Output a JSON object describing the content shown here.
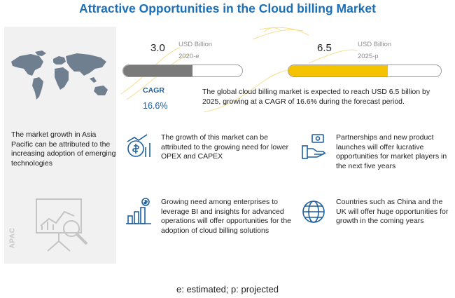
{
  "title": "Attractive Opportunities in the Cloud billing Market",
  "left_panel": {
    "growth_text": "The market growth in Asia Pacific can be attributed to the increasing adoption of emerging technologies",
    "region_label": "APAC",
    "icons": [
      "world-map-icon",
      "analytics-board-icon"
    ]
  },
  "market_size": {
    "start": {
      "value": "3.0",
      "unit": "USD Billion",
      "year": "2020-e"
    },
    "end": {
      "value": "6.5",
      "unit": "USD Billion",
      "year": "2025-p"
    },
    "cagr_label": "CAGR",
    "cagr_value": "16.6%",
    "summary": "The global cloud billing market is expected to reach USD 6.5 billion by 2025, growing at a CAGR of 16.6% during the forecast period."
  },
  "cards": [
    {
      "icon": "money-chart-icon",
      "text": "The growth of this market can be attributed to the growing need for lower OPEX and CAPEX"
    },
    {
      "icon": "handshake-money-icon",
      "text": "Partnerships and new product launches will offer lucrative opportunities for market players in the next five years"
    },
    {
      "icon": "bar-chart-dollar-icon",
      "text": "Growing need among enterprises to leverage BI and insights for advanced operations will offer opportunities for the adoption of cloud billing solutions"
    },
    {
      "icon": "globe-icon",
      "text": "Countries such as China and the UK will offer huge opportunities for growth in the coming years"
    }
  ],
  "footnote": "e: estimated; p: projected",
  "chart_data": {
    "type": "bar",
    "orientation": "horizontal",
    "categories": [
      "2020-e",
      "2025-p"
    ],
    "values": [
      3.0,
      6.5
    ],
    "unit": "USD Billion",
    "cagr": "16.6%",
    "colors": [
      "#7a7a7a",
      "#f5c200"
    ],
    "title": "Attractive Opportunities in the Cloud billing Market"
  },
  "colors": {
    "title": "#1a6fb6",
    "accent": "#f5c200",
    "icon": "#1f5f9e",
    "panel": "#f1f1f1"
  }
}
